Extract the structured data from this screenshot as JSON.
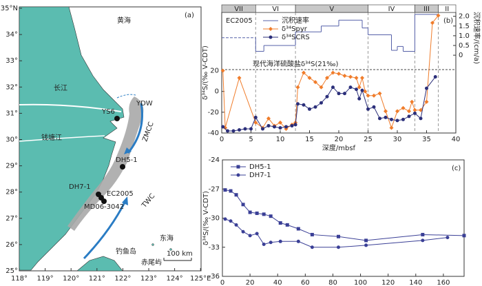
{
  "map": {
    "panel_label": "(a)",
    "lat_ticks": [
      "35°N",
      "34°",
      "33°",
      "32°",
      "31°",
      "30°",
      "29°",
      "28°",
      "27°",
      "26°",
      "25°"
    ],
    "lon_ticks": [
      "118°",
      "119°",
      "120°",
      "121°",
      "122°",
      "123°",
      "124°",
      "125°E"
    ],
    "labels": [
      "黄海",
      "长江",
      "YDW",
      "YS6",
      "钱塘江",
      "ZMCC",
      "DH5-1",
      "DH7-1",
      "EC2005",
      "MD06-3042",
      "TWC",
      "东海",
      "钓鱼岛",
      "赤尾屿",
      "100 km"
    ]
  },
  "chart_data": [
    {
      "type": "line",
      "panel_label": "(b)",
      "annotation": "EC2005",
      "xlabel": "深度/mbsf",
      "ylabel": "δ³⁴S/(‰ V-CDT)",
      "y2label": "沉积速率/(cm/a)",
      "xlim": [
        0,
        40
      ],
      "xticks": [
        0,
        5,
        10,
        15,
        20,
        25,
        30,
        35,
        40
      ],
      "ylim": [
        -40,
        76
      ],
      "yticks": [
        -40,
        -20,
        0,
        20
      ],
      "y2lim": [
        -4,
        2.2
      ],
      "y2ticks": [
        0,
        0.5,
        {
          "value": 1,
          "label": "1.0"
        },
        1.5,
        {
          "value": 2,
          "label": "2.0"
        }
      ],
      "reference_line": {
        "value": 21,
        "label": "现代海洋硫酸盐δ³⁴S(21‰)"
      },
      "zones": [
        {
          "name": "VII",
          "start": 0,
          "end": 5.8
        },
        {
          "name": "VI",
          "start": 5.8,
          "end": 12.6
        },
        {
          "name": "V",
          "start": 12.6,
          "end": 25
        },
        {
          "name": "IV",
          "start": 25,
          "end": 33
        },
        {
          "name": "III",
          "start": 33,
          "end": 37
        },
        {
          "name": "II",
          "start": 37,
          "end": 40
        }
      ],
      "series": [
        {
          "name": "沉积速率",
          "color": "#5560a8",
          "axis": "y2",
          "style": "step",
          "bins": [
            0,
            5.8,
            7.2,
            12.6,
            17,
            20,
            24,
            25,
            29,
            30,
            31,
            33,
            37
          ],
          "values": [
            0.9,
            0.2,
            0.5,
            1.2,
            1.5,
            1.8,
            1.4,
            1.05,
            0.25,
            0.45,
            0.2,
            2.1
          ]
        },
        {
          "name": "δ³⁴Spyr",
          "color": "#f07c2a",
          "marker": "diamond",
          "x": [
            0.2,
            0.6,
            3,
            5.8,
            7,
            8,
            9,
            10,
            11,
            12,
            12.6,
            13,
            14,
            15,
            16,
            17,
            18,
            19,
            20,
            21,
            22,
            23,
            23.5,
            24,
            24.5,
            25,
            26,
            27,
            28,
            29,
            30,
            31,
            32,
            32.5,
            33,
            34,
            35,
            36,
            37
          ],
          "values": [
            20,
            -35,
            13,
            -30,
            -35,
            -26,
            -33,
            -30,
            -36,
            -32,
            -30,
            4,
            18,
            13,
            9,
            4,
            13,
            18,
            17,
            15,
            14,
            13,
            4,
            13,
            0,
            -4,
            -4,
            -2,
            -19,
            -35,
            -19,
            -16,
            -19,
            -10,
            -18,
            -18,
            -10,
            66,
            73
          ]
        },
        {
          "name": "δ³⁴SCRS",
          "color": "#2b2f7a",
          "marker": "circle",
          "x": [
            0.2,
            1,
            2,
            3,
            4,
            5,
            5.8,
            7,
            8,
            9,
            10,
            11,
            12,
            12.6,
            13,
            14,
            15,
            16,
            17,
            18,
            19,
            20,
            21,
            22,
            23,
            23.5,
            24,
            25,
            26,
            27,
            28,
            29,
            30,
            31,
            32,
            33,
            34,
            35,
            36.5
          ],
          "values": [
            -34,
            -38,
            -38,
            -37,
            -36,
            -36,
            -25,
            -36,
            -33,
            -34,
            -35,
            -34,
            -33,
            -32,
            -12,
            -13,
            -17,
            -15,
            -11,
            -5,
            4,
            -2,
            -2,
            4,
            2,
            -7,
            1,
            -17,
            -15,
            -26,
            -25,
            -27,
            -28,
            -27,
            -24,
            -21,
            -26,
            3,
            14
          ]
        }
      ]
    },
    {
      "type": "line",
      "panel_label": "(c)",
      "xlabel": "深度/cmbsf",
      "ylabel": "δ³⁴S/(‰ V-CDT)",
      "xlim": [
        0,
        175
      ],
      "xticks": [
        0,
        20,
        40,
        60,
        80,
        100,
        120,
        140,
        160
      ],
      "ylim": [
        -36,
        -24
      ],
      "yticks": [
        -36,
        -33,
        -30,
        -27,
        -24
      ],
      "series": [
        {
          "name": "DH5-1",
          "color": "#3a3f96",
          "marker": "square",
          "x": [
            2,
            6,
            10,
            15,
            20,
            25,
            30,
            35,
            42,
            47,
            55,
            65,
            84,
            104,
            145,
            175
          ],
          "values": [
            -27.1,
            -27.2,
            -27.6,
            -28.6,
            -29.4,
            -29.5,
            -29.6,
            -29.8,
            -30.5,
            -30.7,
            -31.1,
            -31.7,
            -31.9,
            -32.3,
            -31.7,
            -31.8
          ]
        },
        {
          "name": "DH7-1",
          "color": "#3a3f96",
          "marker": "circle",
          "x": [
            2,
            6,
            10,
            15,
            20,
            25,
            30,
            35,
            42,
            55,
            65,
            84,
            104,
            145,
            163
          ],
          "values": [
            -30.1,
            -30.3,
            -30.7,
            -31.4,
            -31.8,
            -31.6,
            -32.7,
            -32.5,
            -32.4,
            -32.4,
            -33.0,
            -33.0,
            -32.8,
            -32.3,
            -32.0
          ]
        }
      ]
    }
  ]
}
